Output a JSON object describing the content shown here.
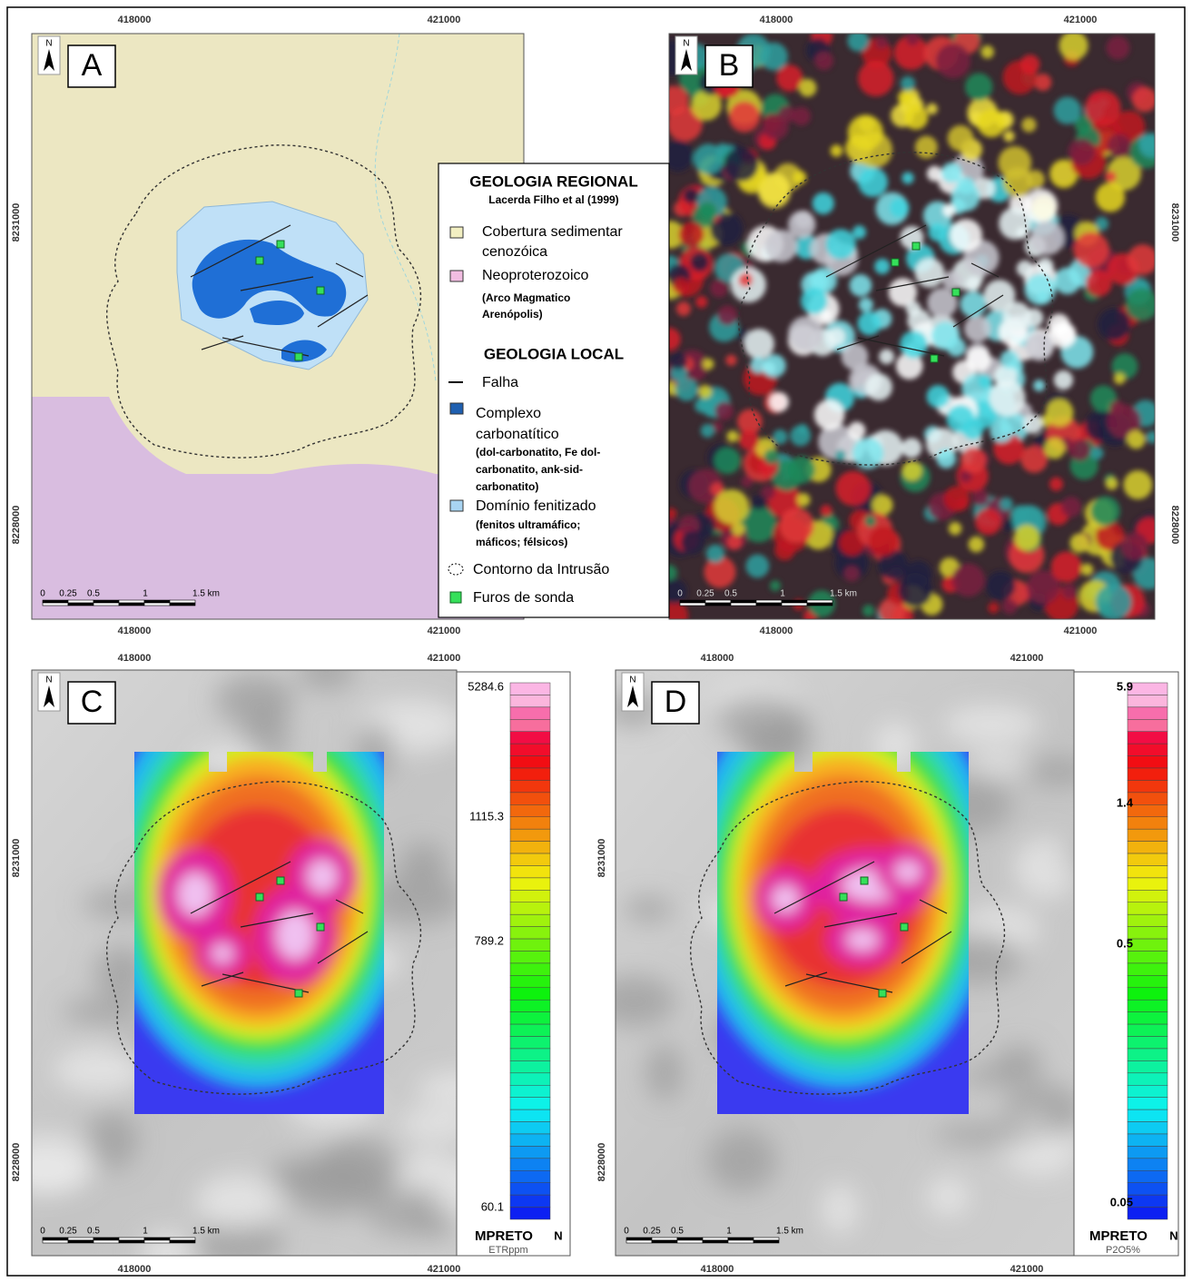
{
  "panels": [
    {
      "label": "A",
      "north": "N",
      "top_ticks": [
        "418000",
        "421000"
      ],
      "bottom_ticks": [
        "418000",
        "421000"
      ],
      "left_ticks": [
        "8231000",
        "8228000"
      ],
      "scale_bar": [
        "0",
        "0.25",
        "0.5",
        "1",
        "1.5 km"
      ]
    },
    {
      "label": "B",
      "north": "N",
      "top_ticks": [
        "418000",
        "421000"
      ],
      "bottom_ticks": [
        "418000",
        "421000"
      ],
      "right_ticks": [
        "8231000",
        "8228000"
      ],
      "scale_bar": [
        "0",
        "0.25",
        "0.5",
        "1",
        "1.5 km"
      ]
    },
    {
      "label": "C",
      "north": "N",
      "top_ticks": [
        "418000",
        "421000"
      ],
      "bottom_ticks": [
        "418000",
        "421000"
      ],
      "left_ticks": [
        "8231000",
        "8228000"
      ],
      "scale_bar": [
        "0",
        "0.25",
        "0.5",
        "1",
        "1.5 km"
      ],
      "color_bar": {
        "labels": [
          "5284.6",
          "1115.3",
          "789.2",
          "60.1"
        ],
        "source": "MPRETO",
        "north": "N",
        "unit": "ETRppm"
      }
    },
    {
      "label": "D",
      "north": "N",
      "top_ticks": [
        "418000",
        "421000"
      ],
      "bottom_ticks": [
        "418000",
        "421000"
      ],
      "left_ticks": [
        "8231000",
        "8228000"
      ],
      "scale_bar": [
        "0",
        "0.25",
        "0.5",
        "1",
        "1.5 km"
      ],
      "color_bar": {
        "labels": [
          "5.9",
          "1.4",
          "0.5",
          "0.05"
        ],
        "source": "MPRETO",
        "north": "N",
        "unit": "P2O5%"
      }
    }
  ],
  "legend": {
    "title_regional": "GEOLOGIA REGIONAL",
    "reference": "Lacerda Filho et al (1999)",
    "cobertura": [
      "Cobertura sedimentar",
      "cenozóica"
    ],
    "neoproterozoico": "Neoproterozoico",
    "neoproterozoico_note": [
      "(Arco Magmatico",
      "Arenópolis)"
    ],
    "title_local": "GEOLOGIA LOCAL",
    "falha": "Falha",
    "complexo": [
      "Complexo",
      "carbonatítico"
    ],
    "complexo_note": [
      "(dol-carbonatito, Fe dol-",
      "carbonatito, ank-sid-",
      "carbonatito)"
    ],
    "dominio": "Domínio fenitizado",
    "dominio_note": [
      "(fenitos ultramáfico;",
      "máficos; félsicos)"
    ],
    "contorno": "Contorno da Intrusão",
    "furos": "Furos de sonda"
  }
}
